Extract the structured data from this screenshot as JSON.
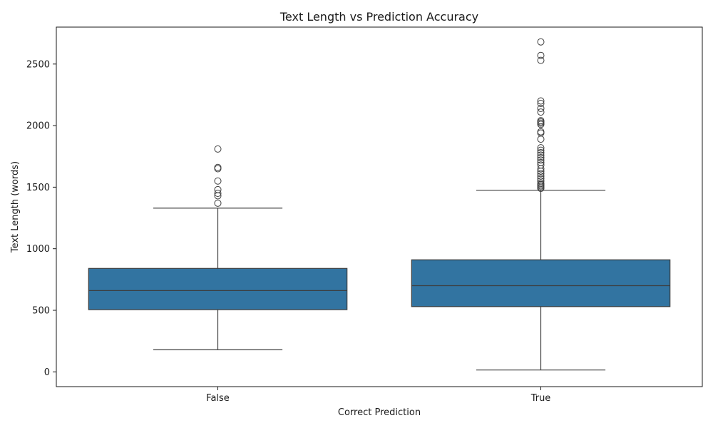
{
  "chart_data": {
    "type": "box",
    "title": "Text Length vs Prediction Accuracy",
    "xlabel": "Correct Prediction",
    "ylabel": "Text Length (words)",
    "ylim": [
      -120,
      2800
    ],
    "yticks": [
      0,
      500,
      1000,
      1500,
      2000,
      2500
    ],
    "grid": false,
    "box_color": "#3274a1",
    "line_color": "#3d3d3d",
    "categories": [
      "False",
      "True"
    ],
    "series": [
      {
        "category": "False",
        "whisker_low": 180,
        "q1": 505,
        "median": 660,
        "q3": 840,
        "whisker_high": 1330,
        "outliers": [
          1370,
          1430,
          1450,
          1480,
          1550,
          1650,
          1660,
          1810
        ]
      },
      {
        "category": "True",
        "whisker_low": 15,
        "q1": 530,
        "median": 700,
        "q3": 910,
        "whisker_high": 1475,
        "outliers": [
          1490,
          1500,
          1510,
          1520,
          1530,
          1550,
          1570,
          1590,
          1610,
          1630,
          1650,
          1680,
          1700,
          1720,
          1740,
          1760,
          1780,
          1800,
          1820,
          1890,
          1940,
          1950,
          2010,
          2020,
          2030,
          2040,
          2110,
          2140,
          2180,
          2200,
          2530,
          2570,
          2680
        ]
      }
    ]
  }
}
